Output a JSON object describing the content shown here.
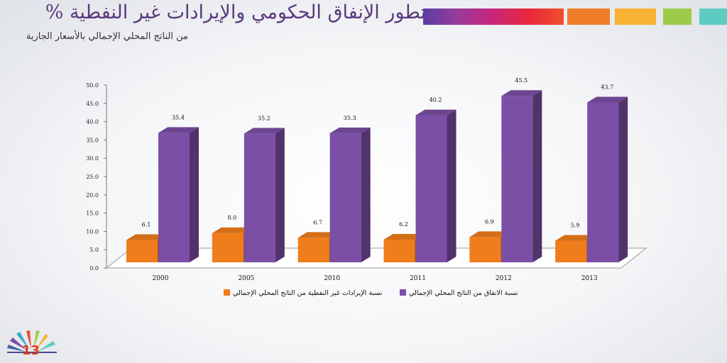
{
  "slide": {
    "title": "تطور الإنفاق الحكومي والإيرادات غير النفطية %",
    "subtitle": "من الناتج المحلي الإجمالي بالأسعار الجارية",
    "page_number": "13"
  },
  "colors": {
    "orange": "#f07d1b",
    "purple": "#7b4fa5",
    "title": "#5a3a7e"
  },
  "chart_data": {
    "type": "bar",
    "categories": [
      "2000",
      "2005",
      "2010",
      "2011",
      "2012",
      "2013"
    ],
    "series": [
      {
        "name": "نسبة الإيرادات غير النفطية من الناتج المحلي الإجمالي",
        "color": "#f07d1b",
        "values": [
          6.1,
          8.0,
          6.7,
          6.2,
          6.9,
          5.9
        ],
        "labels": [
          "6.1",
          "8.0",
          "6.7",
          "6.2",
          "6.9",
          "5.9"
        ]
      },
      {
        "name": "نسبة الانفاق من الناتج المحلي الإجمالي",
        "color": "#7b4fa5",
        "values": [
          35.4,
          35.2,
          35.3,
          40.2,
          45.5,
          43.7
        ],
        "labels": [
          "35.4",
          "35.2",
          "35.3",
          "40.2",
          "45.5",
          "43.7"
        ]
      }
    ],
    "y_ticks": [
      "0.0",
      "5.0",
      "10.0",
      "15.0",
      "20.0",
      "25.0",
      "30.0",
      "35.0",
      "40.0",
      "45.0",
      "50.0"
    ],
    "ylim": [
      0,
      50
    ],
    "legend_position": "bottom",
    "grid": false,
    "style": "3d-column"
  }
}
